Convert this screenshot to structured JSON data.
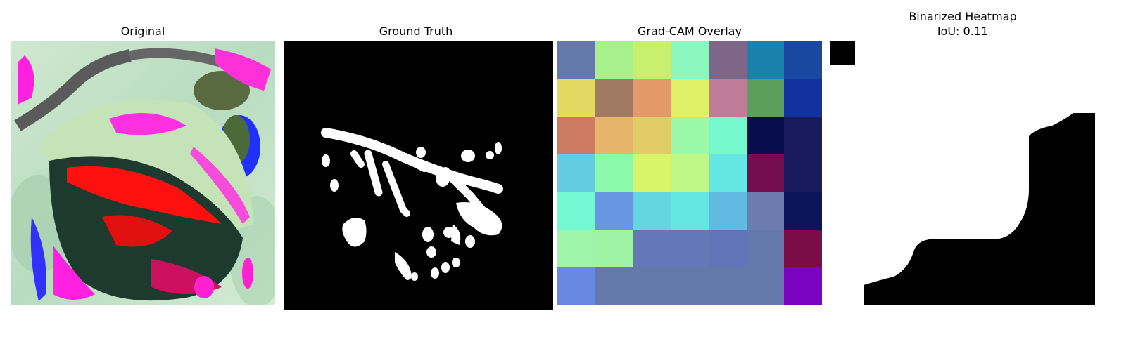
{
  "panels": {
    "original": {
      "title": "Original"
    },
    "ground_truth": {
      "title": "Ground Truth"
    },
    "gradcam": {
      "title": "Grad-CAM Overlay",
      "grid": [
        [
          "#6578aa",
          "#a8f08c",
          "#c8f06e",
          "#8cf8c0",
          "#7e6688",
          "#1a80ac",
          "#1848a0"
        ],
        [
          "#e2d862",
          "#a07a62",
          "#e49a68",
          "#e0f066",
          "#be7c98",
          "#5e9e5c",
          "#1232a0"
        ],
        [
          "#cc7a62",
          "#e6b46a",
          "#e2cc68",
          "#9af8a8",
          "#74f8cc",
          "#080e4c",
          "#1a1a5e"
        ],
        [
          "#64ccde",
          "#8cf8aa",
          "#d8f468",
          "#c0f888",
          "#64e6e2",
          "#740c50",
          "#1a1a5e"
        ],
        [
          "#72f8d2",
          "#6896e0",
          "#64d6e0",
          "#64e6e2",
          "#62bae2",
          "#6c7cae",
          "#0e145a"
        ],
        [
          "#9ef4a8",
          "#9ef4a4",
          "#6478b8",
          "#6478b8",
          "#6474b8",
          "#6478ae",
          "#7a0c48"
        ],
        [
          "#6888e4",
          "#6478aa",
          "#6478aa",
          "#6478aa",
          "#6478aa",
          "#6478aa",
          "#7a04c0"
        ]
      ]
    },
    "binarized": {
      "title": "Binarized Heatmap",
      "subtitle": "IoU: 0.11"
    }
  },
  "colors": {
    "background": "#ffffff",
    "mask_fg": "#ffffff",
    "mask_bg": "#000000"
  }
}
